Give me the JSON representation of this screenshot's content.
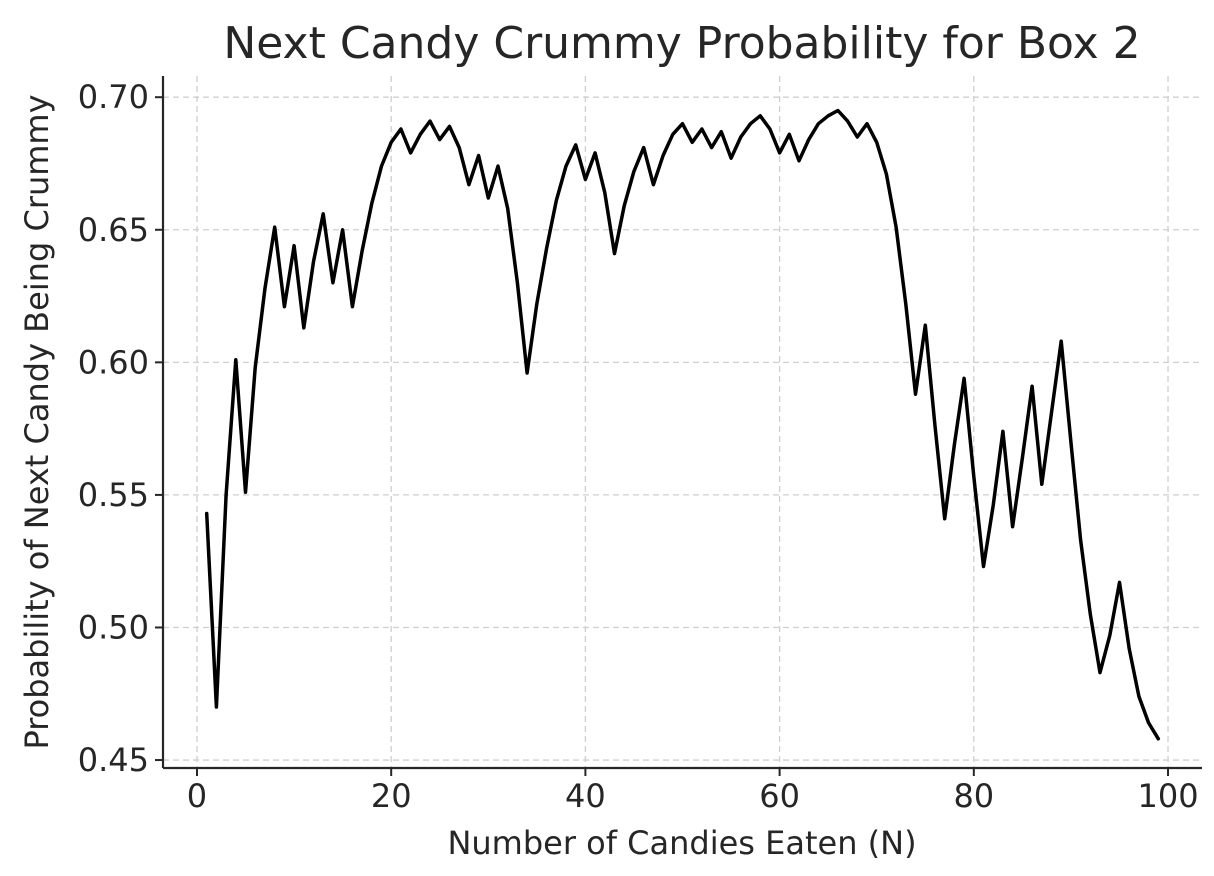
{
  "chart_data": {
    "type": "line",
    "title": "Next Candy Crummy Probability for Box 2",
    "xlabel": "Number of Candies Eaten (N)",
    "ylabel": "Probability of Next Candy Being Crummy",
    "xlim": [
      -3.5,
      103.5
    ],
    "ylim": [
      0.447,
      0.708
    ],
    "xticks": [
      0,
      20,
      40,
      60,
      80,
      100
    ],
    "xtick_labels": [
      "0",
      "20",
      "40",
      "60",
      "80",
      "100"
    ],
    "yticks": [
      0.45,
      0.5,
      0.55,
      0.6,
      0.65,
      0.7
    ],
    "ytick_labels": [
      "0.45",
      "0.50",
      "0.55",
      "0.60",
      "0.65",
      "0.70"
    ],
    "grid": true,
    "line_color": "#000000",
    "series": [
      {
        "x": [
          1,
          2,
          3,
          4,
          5,
          6,
          7,
          8,
          9,
          10,
          11,
          12,
          13,
          14,
          15,
          16,
          17,
          18,
          19,
          20,
          21,
          22,
          23,
          24,
          25,
          26,
          27,
          28,
          29,
          30,
          31,
          32,
          33,
          34,
          35,
          36,
          37,
          38,
          39,
          40,
          41,
          42,
          43,
          44,
          45,
          46,
          47,
          48,
          49,
          50,
          51,
          52,
          53,
          54,
          55,
          56,
          57,
          58,
          59,
          60,
          61,
          62,
          63,
          64,
          65,
          66,
          67,
          68,
          69,
          70,
          71,
          72,
          73,
          74,
          75,
          76,
          77,
          78,
          79,
          80,
          81,
          82,
          83,
          84,
          85,
          86,
          87,
          88,
          89,
          90,
          91,
          92,
          93,
          94,
          95,
          96,
          97,
          98,
          99
        ],
        "values": [
          0.543,
          0.47,
          0.55,
          0.601,
          0.551,
          0.598,
          0.628,
          0.651,
          0.621,
          0.644,
          0.613,
          0.638,
          0.656,
          0.63,
          0.65,
          0.621,
          0.642,
          0.66,
          0.674,
          0.683,
          0.688,
          0.679,
          0.686,
          0.691,
          0.684,
          0.689,
          0.681,
          0.667,
          0.678,
          0.662,
          0.674,
          0.658,
          0.63,
          0.596,
          0.622,
          0.643,
          0.661,
          0.674,
          0.682,
          0.669,
          0.679,
          0.664,
          0.641,
          0.659,
          0.672,
          0.681,
          0.667,
          0.678,
          0.686,
          0.69,
          0.683,
          0.688,
          0.681,
          0.687,
          0.677,
          0.685,
          0.69,
          0.693,
          0.688,
          0.679,
          0.686,
          0.676,
          0.684,
          0.69,
          0.693,
          0.695,
          0.691,
          0.685,
          0.69,
          0.683,
          0.671,
          0.651,
          0.622,
          0.588,
          0.614,
          0.576,
          0.541,
          0.569,
          0.594,
          0.557,
          0.523,
          0.546,
          0.574,
          0.538,
          0.564,
          0.591,
          0.554,
          0.581,
          0.608,
          0.57,
          0.533,
          0.505,
          0.483,
          0.497,
          0.517,
          0.492,
          0.474,
          0.464,
          0.458
        ]
      }
    ]
  }
}
